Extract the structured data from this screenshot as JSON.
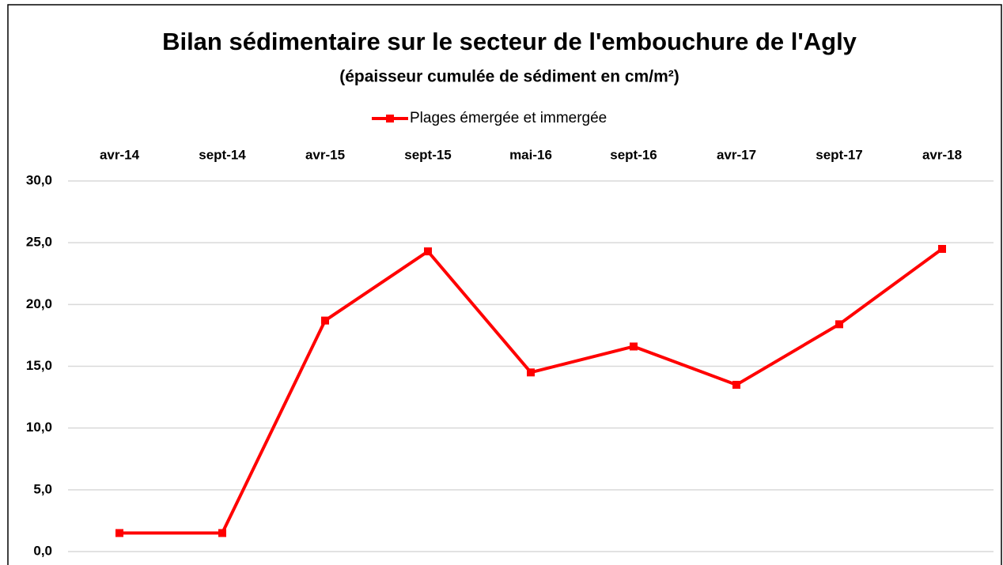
{
  "chart_data": {
    "type": "line",
    "title": "Bilan sédimentaire sur le secteur de l'embouchure de l'Agly",
    "subtitle": "(épaisseur cumulée de sédiment en cm/m²)",
    "categories": [
      "avr-14",
      "sept-14",
      "avr-15",
      "sept-15",
      "mai-16",
      "sept-16",
      "avr-17",
      "sept-17",
      "avr-18"
    ],
    "series": [
      {
        "name": "Plages émergée et immergée",
        "color": "#ff0000",
        "values": [
          1.5,
          1.5,
          18.7,
          24.3,
          14.5,
          16.6,
          13.5,
          18.4,
          24.5
        ]
      }
    ],
    "ylim": [
      0,
      30
    ],
    "yticks": [
      {
        "value": 0,
        "label": "0,0"
      },
      {
        "value": 5,
        "label": "5,0"
      },
      {
        "value": 10,
        "label": "10,0"
      },
      {
        "value": 15,
        "label": "15,0"
      },
      {
        "value": 20,
        "label": "20,0"
      },
      {
        "value": 25,
        "label": "25,0"
      },
      {
        "value": 30,
        "label": "30,0"
      }
    ],
    "grid": true,
    "legend": "top"
  }
}
